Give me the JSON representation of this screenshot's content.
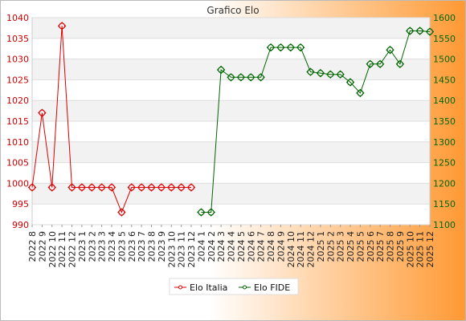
{
  "chart_data": {
    "type": "line",
    "title": "Grafico Elo",
    "legend_position": "bottom-center",
    "grid": true,
    "categories": [
      "2022 8",
      "2022 9",
      "2022 10",
      "2022 11",
      "2022 12",
      "2023 1",
      "2023 2",
      "2023 3",
      "2023 4",
      "2023 5",
      "2023 6",
      "2023 7",
      "2023 8",
      "2023 9",
      "2023 10",
      "2023 11",
      "2023 12",
      "2024 1",
      "2024 2",
      "2024 3",
      "2024 4",
      "2024 5",
      "2024 6",
      "2024 7",
      "2024 8",
      "2024 9",
      "2024 10",
      "2024 11",
      "2024 12",
      "2025 1",
      "2025 2",
      "2025 3",
      "2025 4",
      "2025 5",
      "2025 6",
      "2025 7",
      "2025 8",
      "2025 9",
      "2025 10",
      "2025 11",
      "2025 12"
    ],
    "y_left": {
      "ylim": [
        990,
        1040
      ],
      "ticks": [
        990,
        995,
        1000,
        1005,
        1010,
        1015,
        1020,
        1025,
        1030,
        1035,
        1040
      ],
      "color": "#cc0000"
    },
    "y_right": {
      "ylim": [
        1100,
        1600
      ],
      "ticks": [
        1100,
        1150,
        1200,
        1250,
        1300,
        1350,
        1400,
        1450,
        1500,
        1550,
        1600
      ],
      "color": "#006600"
    },
    "series": [
      {
        "name": "Elo Italia",
        "axis": "left",
        "color": "#dd0000",
        "values": [
          999,
          1017,
          999,
          1038,
          999,
          999,
          999,
          999,
          999,
          993,
          999,
          999,
          999,
          999,
          999,
          999,
          999,
          null,
          null,
          null,
          null,
          null,
          null,
          null,
          null,
          null,
          null,
          null,
          null,
          null,
          null,
          null,
          null,
          null,
          null,
          null,
          null,
          null,
          null,
          null,
          null
        ]
      },
      {
        "name": "Elo FIDE",
        "axis": "right",
        "color": "#006600",
        "values": [
          null,
          null,
          null,
          null,
          null,
          null,
          null,
          null,
          null,
          null,
          null,
          null,
          null,
          null,
          null,
          null,
          null,
          1130,
          1130,
          1474,
          1456,
          1456,
          1456,
          1456,
          1528,
          1528,
          1528,
          1528,
          1469,
          1466,
          1463,
          1463,
          1444,
          1418,
          1488,
          1488,
          1522,
          1488,
          1568,
          1568,
          1566
        ]
      }
    ]
  }
}
